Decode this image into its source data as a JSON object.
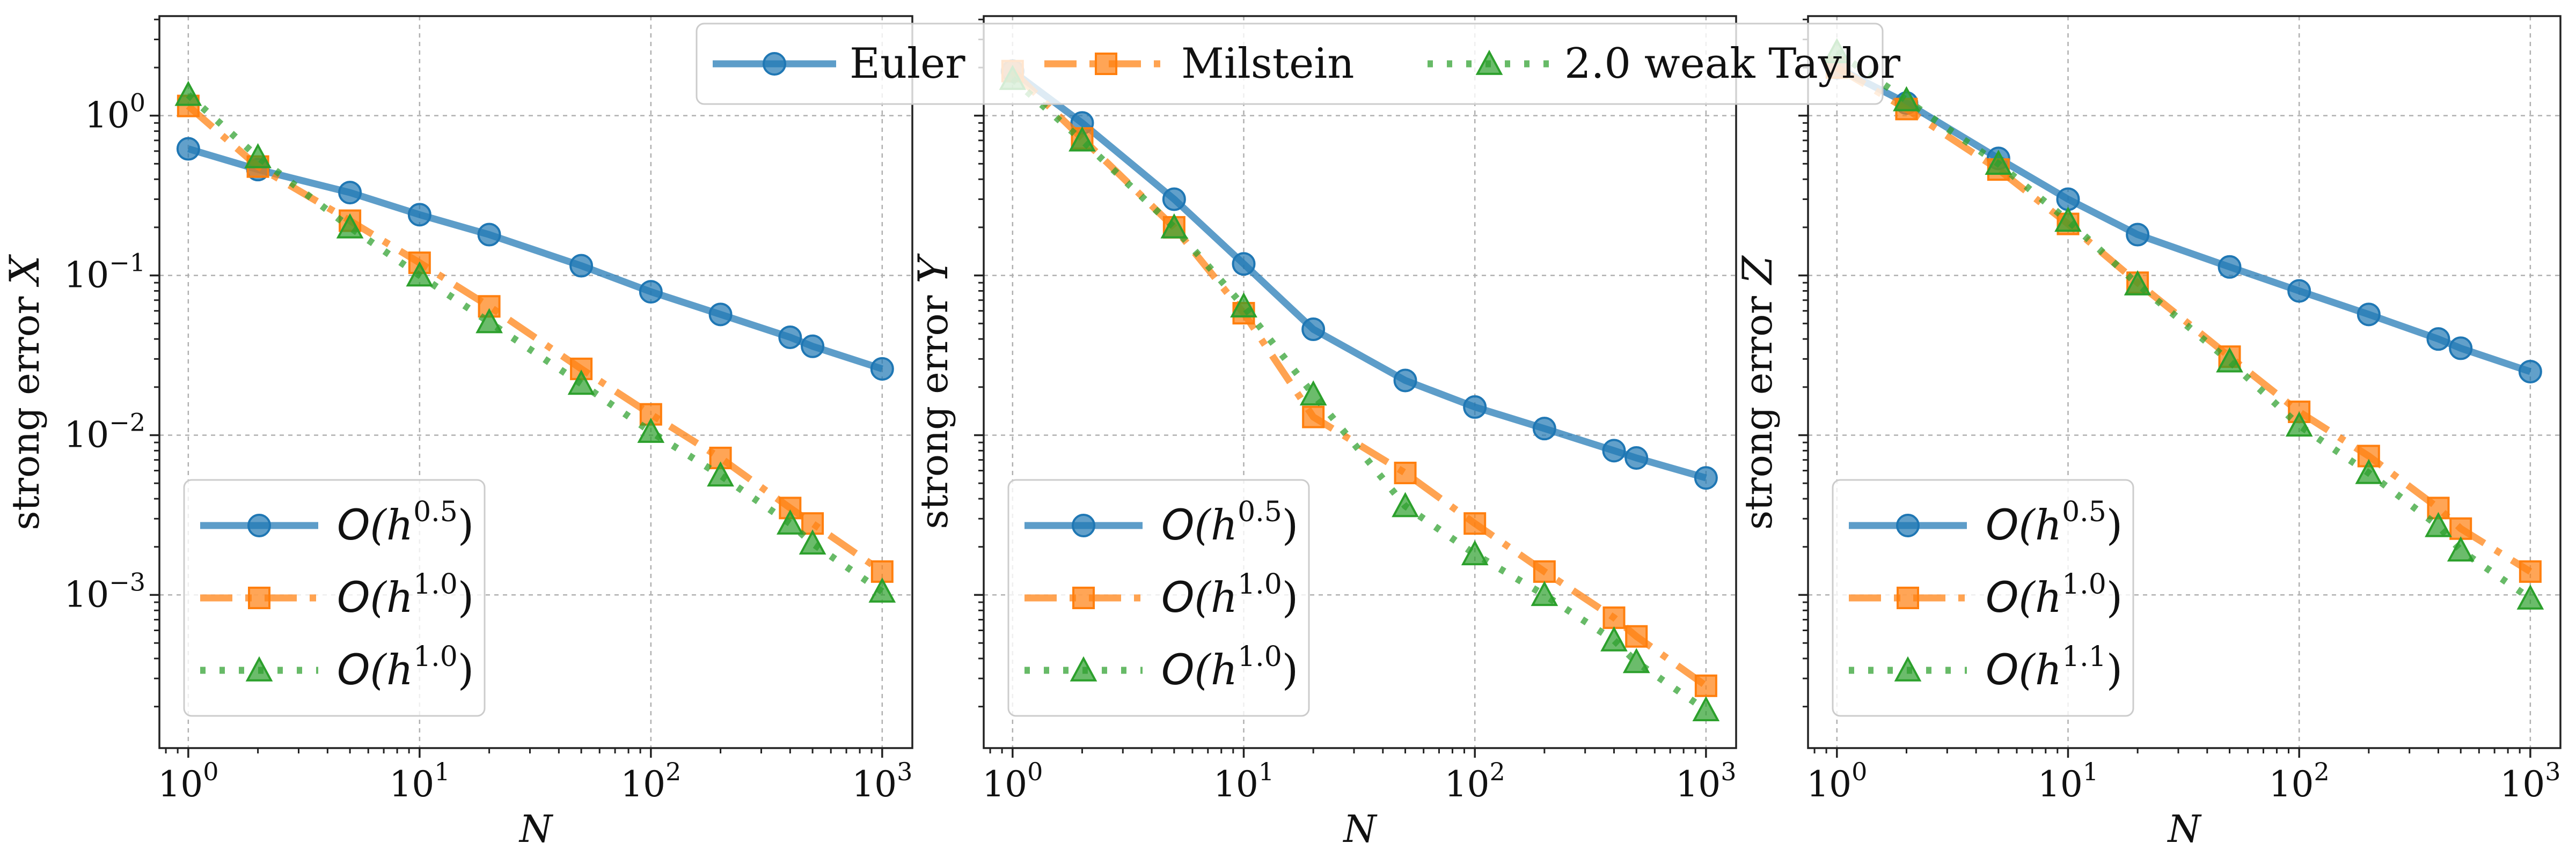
{
  "figure_legend": {
    "entries": [
      "Euler",
      "Milstein",
      "2.0 weak Taylor"
    ]
  },
  "styles": {
    "colors": [
      "#1f77b4",
      "#ff7f0e",
      "#2ca02c"
    ],
    "dashes": [
      "solid",
      "dash-dot",
      "dotted"
    ],
    "markers": [
      "circle",
      "square",
      "triangle"
    ]
  },
  "chart_data": [
    {
      "type": "line",
      "xscale": "log",
      "yscale": "log",
      "xlabel": "N",
      "ylabel": "strong error X",
      "ylabel_prefix": "strong error",
      "ylabel_var": "X",
      "xlim": [
        0.75,
        1350
      ],
      "ylim": [
        0.00011,
        4.2
      ],
      "x_ticks": [
        {
          "value": 1,
          "base": "10",
          "exp": "0"
        },
        {
          "value": 10,
          "base": "10",
          "exp": "1"
        },
        {
          "value": 100,
          "base": "10",
          "exp": "2"
        },
        {
          "value": 1000,
          "base": "10",
          "exp": "3"
        }
      ],
      "y_ticks": [
        {
          "value": 1,
          "base": "10",
          "exp": "0"
        },
        {
          "value": 0.1,
          "base": "10",
          "exp": "−1"
        },
        {
          "value": 0.01,
          "base": "10",
          "exp": "−2"
        },
        {
          "value": 0.001,
          "base": "10",
          "exp": "−3"
        }
      ],
      "grid": true,
      "legend_position": "lower-left",
      "x": [
        1,
        2,
        5,
        10,
        20,
        50,
        100,
        200,
        400,
        500,
        1000
      ],
      "series": [
        {
          "name": "Euler",
          "legend": {
            "o": "O",
            "base": "(h",
            "exp": "0.5",
            "close": ")"
          },
          "values": [
            0.62,
            0.46,
            0.33,
            0.24,
            0.18,
            0.115,
            0.079,
            0.057,
            0.041,
            0.036,
            0.026
          ]
        },
        {
          "name": "Milstein",
          "legend": {
            "o": "O",
            "base": "(h",
            "exp": "1.0",
            "close": ")"
          },
          "values": [
            1.15,
            0.48,
            0.22,
            0.12,
            0.064,
            0.026,
            0.0135,
            0.0072,
            0.0035,
            0.0028,
            0.0014
          ]
        },
        {
          "name": "2.0 weak Taylor",
          "legend": {
            "o": "O",
            "base": "(h",
            "exp": "1.0",
            "close": ")"
          },
          "values": [
            1.35,
            0.55,
            0.2,
            0.1,
            0.051,
            0.021,
            0.0105,
            0.0056,
            0.0028,
            0.0021,
            0.00105
          ]
        }
      ]
    },
    {
      "type": "line",
      "xscale": "log",
      "yscale": "log",
      "xlabel": "N",
      "ylabel": "strong error Y",
      "ylabel_prefix": "strong error",
      "ylabel_var": "Y",
      "xlim": [
        0.75,
        1350
      ],
      "ylim": [
        0.00011,
        4.2
      ],
      "x_ticks": [
        {
          "value": 1,
          "base": "10",
          "exp": "0"
        },
        {
          "value": 10,
          "base": "10",
          "exp": "1"
        },
        {
          "value": 100,
          "base": "10",
          "exp": "2"
        },
        {
          "value": 1000,
          "base": "10",
          "exp": "3"
        }
      ],
      "y_ticks": [],
      "grid": true,
      "legend_position": "lower-left",
      "x": [
        1,
        2,
        5,
        10,
        20,
        50,
        100,
        200,
        400,
        500,
        1000
      ],
      "series": [
        {
          "name": "Euler",
          "legend": {
            "o": "O",
            "base": "(h",
            "exp": "0.5",
            "close": ")"
          },
          "values": [
            1.9,
            0.9,
            0.3,
            0.118,
            0.046,
            0.022,
            0.015,
            0.011,
            0.008,
            0.0072,
            0.0054
          ]
        },
        {
          "name": "Milstein",
          "legend": {
            "o": "O",
            "base": "(h",
            "exp": "1.0",
            "close": ")"
          },
          "values": [
            1.9,
            0.72,
            0.2,
            0.058,
            0.013,
            0.0058,
            0.0028,
            0.0014,
            0.00072,
            0.00055,
            0.00027
          ]
        },
        {
          "name": "2.0 weak Taylor",
          "legend": {
            "o": "O",
            "base": "(h",
            "exp": "1.0",
            "close": ")"
          },
          "values": [
            1.7,
            0.7,
            0.2,
            0.064,
            0.018,
            0.0036,
            0.0018,
            0.001,
            0.00052,
            0.00038,
            0.00019
          ]
        }
      ]
    },
    {
      "type": "line",
      "xscale": "log",
      "yscale": "log",
      "xlabel": "N",
      "ylabel": "strong error Z",
      "ylabel_prefix": "strong error",
      "ylabel_var": "Z",
      "xlim": [
        0.75,
        1350
      ],
      "ylim": [
        0.00011,
        4.2
      ],
      "x_ticks": [
        {
          "value": 1,
          "base": "10",
          "exp": "0"
        },
        {
          "value": 10,
          "base": "10",
          "exp": "1"
        },
        {
          "value": 100,
          "base": "10",
          "exp": "2"
        },
        {
          "value": 1000,
          "base": "10",
          "exp": "3"
        }
      ],
      "y_ticks": [],
      "grid": true,
      "legend_position": "lower-left",
      "x": [
        1,
        2,
        5,
        10,
        20,
        50,
        100,
        200,
        400,
        500,
        1000
      ],
      "series": [
        {
          "name": "Euler",
          "legend": {
            "o": "O",
            "base": "(h",
            "exp": "0.5",
            "close": ")"
          },
          "values": [
            2.0,
            1.2,
            0.54,
            0.3,
            0.18,
            0.113,
            0.08,
            0.057,
            0.04,
            0.035,
            0.025
          ]
        },
        {
          "name": "Milstein",
          "legend": {
            "o": "O",
            "base": "(h",
            "exp": "1.0",
            "close": ")"
          },
          "values": [
            2.0,
            1.1,
            0.46,
            0.21,
            0.09,
            0.031,
            0.014,
            0.0074,
            0.0035,
            0.0026,
            0.0014
          ]
        },
        {
          "name": "2.0 weak Taylor",
          "legend": {
            "o": "O",
            "base": "(h",
            "exp": "1.1",
            "close": ")"
          },
          "values": [
            2.5,
            1.25,
            0.5,
            0.22,
            0.088,
            0.029,
            0.0115,
            0.0058,
            0.0027,
            0.0019,
            0.00095
          ]
        }
      ]
    }
  ]
}
